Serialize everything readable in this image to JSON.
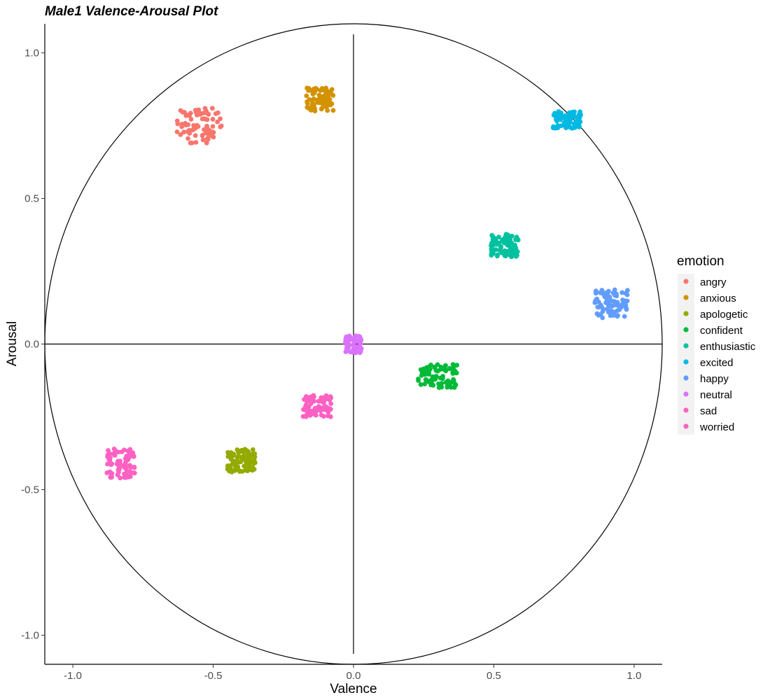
{
  "chart_data": {
    "type": "scatter",
    "title": "Male1 Valence-Arousal Plot",
    "xlabel": "Valence",
    "ylabel": "Arousal",
    "xlim": [
      -1.1,
      1.1
    ],
    "ylim": [
      -1.1,
      1.1
    ],
    "x_ticks": [
      -1.0,
      -0.5,
      0.0,
      0.5,
      1.0
    ],
    "x_tick_labels": [
      "-1.0",
      "-0.5",
      "0.0",
      "0.5",
      "1.0"
    ],
    "y_ticks": [
      -1.0,
      -0.5,
      0.0,
      0.5,
      1.0
    ],
    "y_tick_labels": [
      "-1.0",
      "-0.5",
      "0.0",
      "0.5",
      "1.0"
    ],
    "grid": false,
    "reference_lines": [
      "x = 0",
      "y = 0",
      "unit circle"
    ],
    "legend": {
      "title": "emotion",
      "position": "right"
    },
    "series": [
      {
        "name": "angry",
        "color": "#F8766D",
        "center": [
          -0.55,
          0.75
        ],
        "spread": [
          0.08,
          0.06
        ],
        "points": 80
      },
      {
        "name": "anxious",
        "color": "#D39200",
        "center": [
          -0.12,
          0.84
        ],
        "spread": [
          0.05,
          0.04
        ],
        "points": 80
      },
      {
        "name": "apologetic",
        "color": "#93AA00",
        "center": [
          -0.4,
          -0.4
        ],
        "spread": [
          0.05,
          0.04
        ],
        "points": 80
      },
      {
        "name": "confident",
        "color": "#00BA38",
        "center": [
          0.3,
          -0.11
        ],
        "spread": [
          0.07,
          0.04
        ],
        "points": 80
      },
      {
        "name": "enthusiastic",
        "color": "#00C19F",
        "center": [
          0.54,
          0.34
        ],
        "spread": [
          0.05,
          0.04
        ],
        "points": 80
      },
      {
        "name": "excited",
        "color": "#00B9E3",
        "center": [
          0.76,
          0.77
        ],
        "spread": [
          0.05,
          0.03
        ],
        "points": 80
      },
      {
        "name": "happy",
        "color": "#619CFF",
        "center": [
          0.92,
          0.14
        ],
        "spread": [
          0.06,
          0.05
        ],
        "points": 80
      },
      {
        "name": "neutral",
        "color": "#DB72FB",
        "center": [
          0.0,
          0.0
        ],
        "spread": [
          0.03,
          0.03
        ],
        "points": 60
      },
      {
        "name": "sad",
        "color": "#FF61C3",
        "center": [
          -0.83,
          -0.41
        ],
        "spread": [
          0.05,
          0.05
        ],
        "points": 80
      },
      {
        "name": "worried",
        "color": "#FF61C3",
        "center": [
          -0.13,
          -0.21
        ],
        "spread": [
          0.05,
          0.04
        ],
        "points": 80
      }
    ]
  }
}
